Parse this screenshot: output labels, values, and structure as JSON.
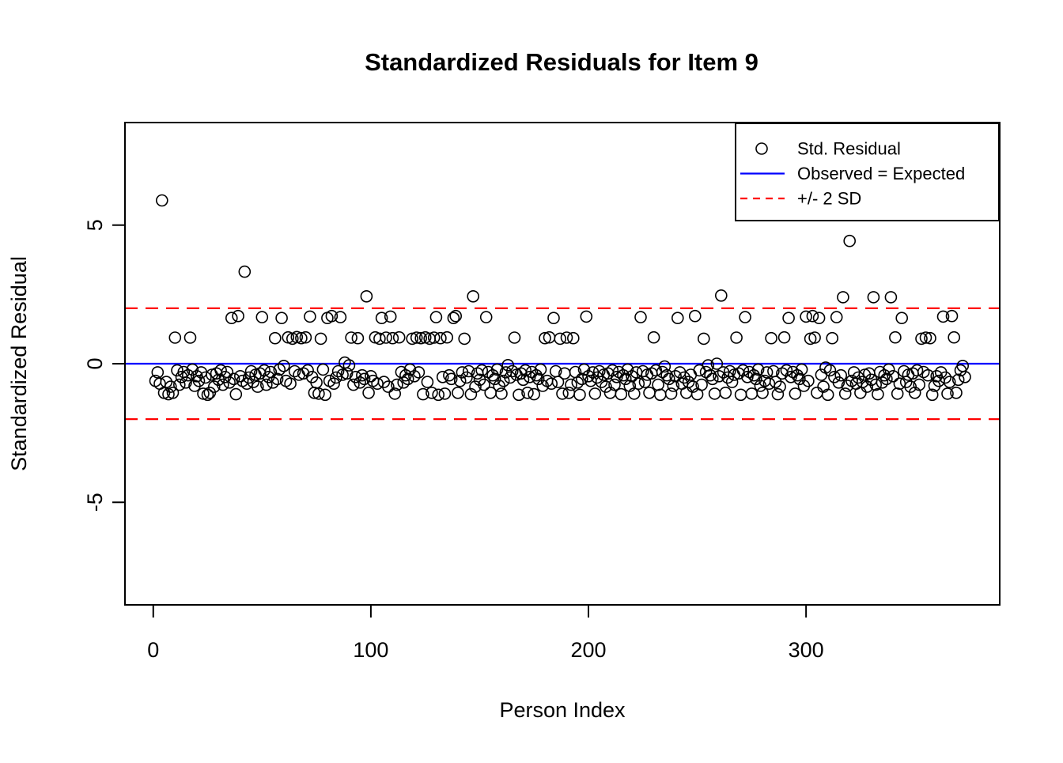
{
  "title": "Standardized Residuals for Item 9",
  "colors": {
    "points": "#000000",
    "observed_line": "#0000ff",
    "sd_line": "#ff0000",
    "background": "#ffffff",
    "axis": "#000000"
  },
  "legend": {
    "items": [
      {
        "label": "Std. Residual",
        "symbol": "open-circle"
      },
      {
        "label": "Observed = Expected",
        "symbol": "blue-solid-line"
      },
      {
        "label": "+/- 2 SD",
        "symbol": "red-dashed-line"
      }
    ]
  },
  "chart_data": {
    "type": "scatter",
    "title": "Standardized Residuals for Item 9",
    "xlabel": "Person Index",
    "ylabel": "Standardized Residual",
    "xlim": [
      -13,
      389
    ],
    "ylim": [
      -8.7,
      8.7
    ],
    "x_ticks": [
      0,
      100,
      200,
      300
    ],
    "y_ticks": [
      5,
      0,
      -5
    ],
    "grid": false,
    "legend_position": "topright",
    "reference_lines": {
      "zero": 0,
      "upper_sd": 2,
      "lower_sd": -2
    },
    "point_style": {
      "shape": "open-circle",
      "radius_px": 7
    },
    "points": [
      [
        4,
        5.89
      ],
      [
        42,
        3.32
      ],
      [
        320,
        4.43
      ],
      [
        98,
        2.43
      ],
      [
        147,
        2.43
      ],
      [
        261,
        2.46
      ],
      [
        317,
        2.4
      ],
      [
        331,
        2.4
      ],
      [
        339,
        2.4
      ],
      [
        36,
        1.65
      ],
      [
        39,
        1.72
      ],
      [
        50,
        1.68
      ],
      [
        59,
        1.65
      ],
      [
        72,
        1.7
      ],
      [
        80,
        1.65
      ],
      [
        82,
        1.72
      ],
      [
        86,
        1.68
      ],
      [
        105,
        1.65
      ],
      [
        109,
        1.7
      ],
      [
        130,
        1.68
      ],
      [
        138,
        1.65
      ],
      [
        139,
        1.72
      ],
      [
        153,
        1.68
      ],
      [
        184,
        1.65
      ],
      [
        199,
        1.7
      ],
      [
        224,
        1.68
      ],
      [
        241,
        1.65
      ],
      [
        249,
        1.72
      ],
      [
        272,
        1.68
      ],
      [
        292,
        1.65
      ],
      [
        300,
        1.7
      ],
      [
        303,
        1.72
      ],
      [
        306,
        1.65
      ],
      [
        314,
        1.68
      ],
      [
        344,
        1.65
      ],
      [
        363,
        1.7
      ],
      [
        367,
        1.72
      ],
      [
        10,
        0.94
      ],
      [
        17,
        0.94
      ],
      [
        56,
        0.92
      ],
      [
        62,
        0.95
      ],
      [
        64,
        0.9
      ],
      [
        66,
        0.96
      ],
      [
        68,
        0.92
      ],
      [
        70,
        0.95
      ],
      [
        77,
        0.9
      ],
      [
        91,
        0.94
      ],
      [
        94,
        0.92
      ],
      [
        102,
        0.95
      ],
      [
        104,
        0.9
      ],
      [
        107,
        0.94
      ],
      [
        110,
        0.92
      ],
      [
        113,
        0.95
      ],
      [
        119,
        0.9
      ],
      [
        121,
        0.94
      ],
      [
        123,
        0.92
      ],
      [
        125,
        0.95
      ],
      [
        127,
        0.9
      ],
      [
        129,
        0.94
      ],
      [
        132,
        0.92
      ],
      [
        135,
        0.95
      ],
      [
        143,
        0.9
      ],
      [
        166,
        0.94
      ],
      [
        180,
        0.92
      ],
      [
        182,
        0.95
      ],
      [
        187,
        0.9
      ],
      [
        190,
        0.94
      ],
      [
        193,
        0.92
      ],
      [
        230,
        0.95
      ],
      [
        253,
        0.9
      ],
      [
        268,
        0.94
      ],
      [
        284,
        0.92
      ],
      [
        290,
        0.95
      ],
      [
        302,
        0.9
      ],
      [
        304,
        0.94
      ],
      [
        312,
        0.92
      ],
      [
        341,
        0.95
      ],
      [
        353,
        0.9
      ],
      [
        355,
        0.94
      ],
      [
        357,
        0.92
      ],
      [
        368,
        0.95
      ],
      [
        5,
        -1.05
      ],
      [
        7,
        -1.1
      ],
      [
        9,
        -1.05
      ],
      [
        23,
        -1.08
      ],
      [
        25,
        -1.12
      ],
      [
        26,
        -1.05
      ],
      [
        38,
        -1.1
      ],
      [
        74,
        -1.05
      ],
      [
        76,
        -1.08
      ],
      [
        79,
        -1.12
      ],
      [
        99,
        -1.05
      ],
      [
        111,
        -1.08
      ],
      [
        124,
        -1.1
      ],
      [
        128,
        -1.05
      ],
      [
        131,
        -1.12
      ],
      [
        134,
        -1.08
      ],
      [
        140,
        -1.05
      ],
      [
        146,
        -1.1
      ],
      [
        155,
        -1.05
      ],
      [
        160,
        -1.08
      ],
      [
        168,
        -1.12
      ],
      [
        172,
        -1.05
      ],
      [
        175,
        -1.1
      ],
      [
        188,
        -1.08
      ],
      [
        191,
        -1.05
      ],
      [
        196,
        -1.12
      ],
      [
        203,
        -1.08
      ],
      [
        210,
        -1.05
      ],
      [
        215,
        -1.1
      ],
      [
        221,
        -1.08
      ],
      [
        228,
        -1.05
      ],
      [
        233,
        -1.12
      ],
      [
        238,
        -1.08
      ],
      [
        245,
        -1.05
      ],
      [
        250,
        -1.1
      ],
      [
        258,
        -1.08
      ],
      [
        263,
        -1.05
      ],
      [
        270,
        -1.12
      ],
      [
        275,
        -1.08
      ],
      [
        280,
        -1.05
      ],
      [
        287,
        -1.1
      ],
      [
        295,
        -1.08
      ],
      [
        305,
        -1.05
      ],
      [
        310,
        -1.12
      ],
      [
        318,
        -1.08
      ],
      [
        325,
        -1.05
      ],
      [
        333,
        -1.1
      ],
      [
        342,
        -1.08
      ],
      [
        350,
        -1.05
      ],
      [
        358,
        -1.12
      ],
      [
        365,
        -1.08
      ],
      [
        369,
        -1.05
      ],
      [
        60,
        -0.08
      ],
      [
        88,
        0.04
      ],
      [
        90,
        -0.06
      ],
      [
        163,
        -0.05
      ],
      [
        235,
        -0.1
      ],
      [
        255,
        -0.06
      ],
      [
        259,
        0.0
      ],
      [
        309,
        -0.14
      ],
      [
        372,
        -0.08
      ]
    ],
    "band_fill": {
      "comment": "dense band of unreadable overlapping points between -0.2 and -0.9 for every person index not listed above",
      "from": 1,
      "to": 373,
      "cycle": [
        -0.45,
        -0.62,
        -0.31,
        -0.72,
        -0.5,
        -0.27,
        -0.66,
        -0.4,
        -0.83,
        -0.35,
        -0.58,
        -0.24,
        -0.76,
        -0.48,
        -0.3,
        -0.68,
        -0.42,
        -0.55,
        -0.21,
        -0.8
      ]
    }
  }
}
